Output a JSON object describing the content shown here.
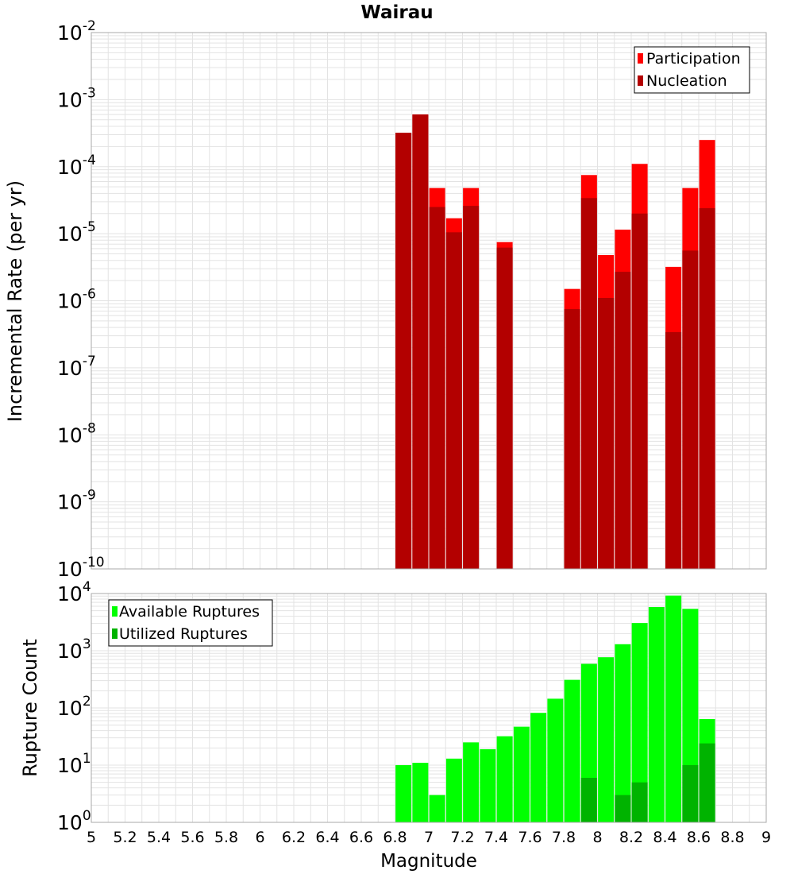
{
  "chart_data": [
    {
      "type": "bar",
      "title": "Wairau",
      "ylabel": "Incremental Rate (per yr)",
      "xlabel": "",
      "yscale": "log",
      "ylim": [
        1e-10,
        0.01
      ],
      "xlim": [
        5,
        9
      ],
      "grid": true,
      "legend_placement": "top-right",
      "series": [
        {
          "name": "Participation",
          "color": "#ff0000",
          "x": [
            6.85,
            6.95,
            7.05,
            7.15,
            7.25,
            7.45,
            7.85,
            7.95,
            8.05,
            8.15,
            8.25,
            8.45,
            8.55,
            8.65
          ],
          "values": [
            0.00032,
            0.0006,
            4.8e-05,
            1.7e-05,
            4.8e-05,
            7.5e-06,
            1.5e-06,
            7.5e-05,
            4.8e-06,
            1.15e-05,
            0.00011,
            3.2e-06,
            4.8e-05,
            0.00025
          ]
        },
        {
          "name": "Nucleation",
          "color": "#b30000",
          "x": [
            6.85,
            6.95,
            7.05,
            7.15,
            7.25,
            7.45,
            7.85,
            7.95,
            8.05,
            8.15,
            8.25,
            8.45,
            8.55,
            8.65
          ],
          "values": [
            0.00032,
            0.0006,
            2.5e-05,
            1.05e-05,
            2.6e-05,
            6.2e-06,
            7.5e-07,
            3.4e-05,
            1.1e-06,
            2.7e-06,
            2e-05,
            3.4e-07,
            5.6e-06,
            2.4e-05
          ]
        }
      ],
      "ytick_exponents": [
        "-2",
        "-3",
        "-4",
        "-5",
        "-6",
        "-7",
        "-8",
        "-9",
        "-10"
      ]
    },
    {
      "type": "bar",
      "title": "",
      "ylabel": "Rupture Count",
      "xlabel": "Magnitude",
      "yscale": "log",
      "ylim": [
        1,
        10000
      ],
      "xlim": [
        5,
        9
      ],
      "grid": true,
      "legend_placement": "top-left",
      "series": [
        {
          "name": "Available Ruptures",
          "color": "#00ff00",
          "x": [
            6.85,
            6.95,
            7.05,
            7.15,
            7.25,
            7.35,
            7.45,
            7.55,
            7.65,
            7.75,
            7.85,
            7.95,
            8.05,
            8.15,
            8.25,
            8.35,
            8.45,
            8.55,
            8.65
          ],
          "values": [
            10,
            11,
            3,
            13,
            25,
            19,
            32,
            47,
            82,
            145,
            310,
            590,
            770,
            1300,
            3050,
            5800,
            9200,
            5400,
            64
          ]
        },
        {
          "name": "Utilized Ruptures",
          "color": "#00b300",
          "x": [
            6.85,
            6.95,
            7.05,
            7.15,
            7.25,
            7.45,
            7.85,
            7.95,
            8.05,
            8.15,
            8.25,
            8.45,
            8.55,
            8.65
          ],
          "values": [
            1,
            1,
            1,
            1,
            1,
            1,
            1,
            6,
            1,
            3,
            5,
            1,
            10,
            24
          ]
        }
      ],
      "ytick_exponents": [
        "4",
        "3",
        "2",
        "1",
        "0"
      ],
      "xticks": [
        "5",
        "5.2",
        "5.4",
        "5.6",
        "5.8",
        "6",
        "6.2",
        "6.4",
        "6.6",
        "6.8",
        "7",
        "7.2",
        "7.4",
        "7.6",
        "7.8",
        "8",
        "8.2",
        "8.4",
        "8.6",
        "8.8",
        "9"
      ]
    }
  ]
}
